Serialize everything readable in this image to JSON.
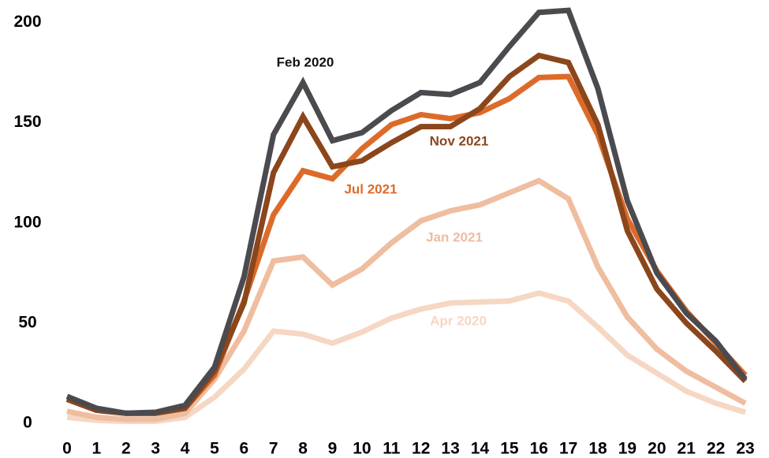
{
  "chart_data": {
    "type": "line",
    "x": [
      0,
      1,
      2,
      3,
      4,
      5,
      6,
      7,
      8,
      9,
      10,
      11,
      12,
      13,
      14,
      15,
      16,
      17,
      18,
      19,
      20,
      21,
      22,
      23
    ],
    "xlim": [
      0,
      23
    ],
    "ylim": [
      0,
      210
    ],
    "yticks": [
      0,
      50,
      100,
      150,
      200
    ],
    "grid": false,
    "series": [
      {
        "name": "Feb 2020",
        "color": "#4a4a4f",
        "values": [
          13.4,
          7.5,
          5,
          5.5,
          9,
          28,
          73,
          144,
          170,
          141,
          145,
          156,
          165,
          164,
          170,
          188,
          205,
          206,
          167,
          111,
          75,
          55,
          41,
          22
        ]
      },
      {
        "name": "Nov 2021",
        "color": "#8c461c",
        "values": [
          12,
          6.5,
          5,
          5,
          7.5,
          26,
          60,
          125,
          153,
          128,
          131,
          140,
          148,
          148,
          157,
          173,
          183.5,
          180,
          149,
          96,
          67,
          50,
          36,
          21
        ]
      },
      {
        "name": "Jul 2021",
        "color": "#dc6b2a",
        "values": [
          12,
          6.5,
          5,
          5,
          7.5,
          24,
          61,
          104,
          126,
          122,
          137,
          149,
          154,
          152,
          155,
          162,
          172.5,
          173,
          144,
          102,
          76,
          56,
          40,
          24
        ]
      },
      {
        "name": "Jan 2021",
        "color": "#efbd9f",
        "values": [
          6,
          3,
          2,
          2,
          5,
          22,
          46,
          81,
          83,
          69,
          77,
          90,
          101,
          106,
          109,
          115,
          121,
          112,
          78,
          53,
          37,
          26,
          18,
          10
        ]
      },
      {
        "name": "Apr 2020",
        "color": "#f6d7c3",
        "values": [
          3,
          1.5,
          1,
          1,
          3,
          13,
          27,
          46,
          44.5,
          40,
          45.5,
          52.5,
          57,
          60,
          60.5,
          61,
          65,
          61,
          48,
          34,
          25,
          16,
          10,
          5.5
        ]
      }
    ]
  }
}
